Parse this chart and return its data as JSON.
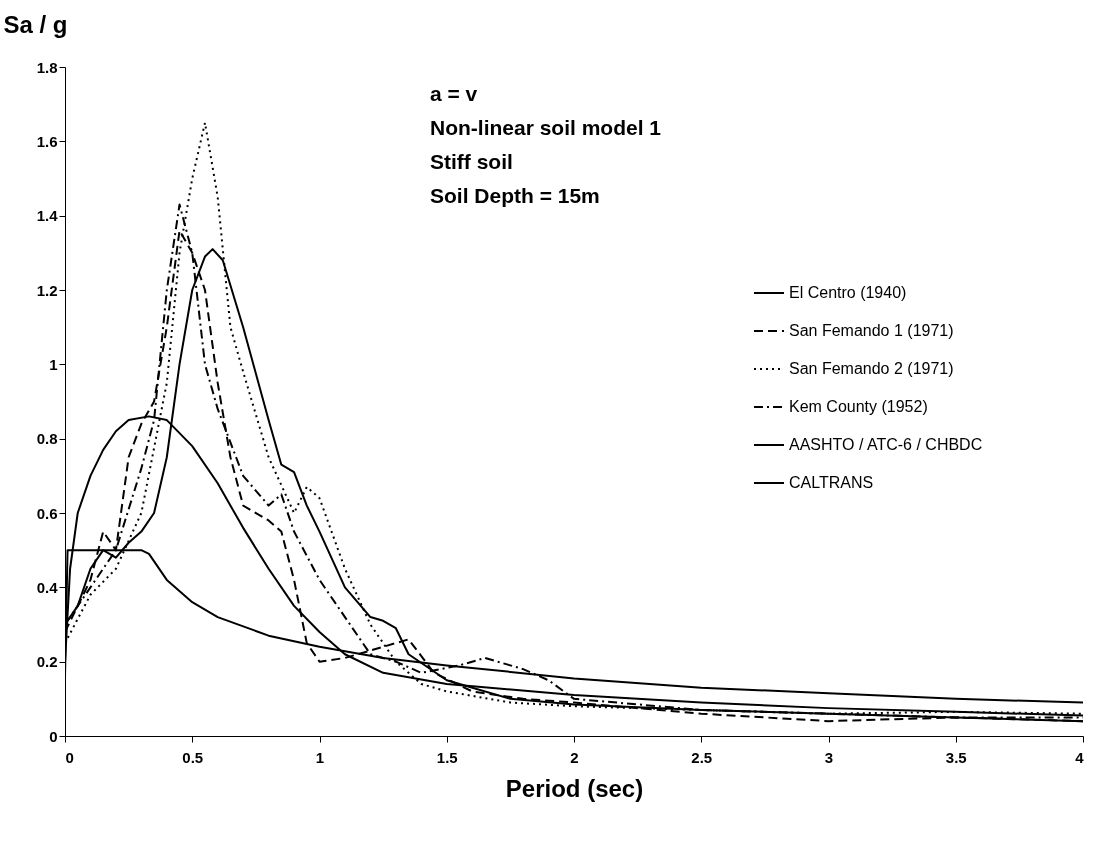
{
  "chart_data": {
    "type": "line",
    "xlabel": "Period (sec)",
    "ylabel": "Sa / g",
    "annotations": [
      "a = v",
      "Non-linear soil model 1",
      "Stiff soil",
      "Soil Depth = 15m"
    ],
    "xlim": [
      0,
      4
    ],
    "xticks": [
      0,
      0.5,
      1,
      1.5,
      2,
      2.5,
      3,
      3.5,
      4
    ],
    "ylim": [
      0,
      1.8
    ],
    "yticks": [
      0,
      0.2,
      0.4,
      0.6,
      0.8,
      1,
      1.2,
      1.4,
      1.6,
      1.8
    ],
    "grid": false,
    "legend": "right",
    "marker": "none",
    "series": [
      {
        "name": "El Centro (1940)",
        "color": "#000000",
        "line_style": "solid",
        "x": [
          0,
          0.05,
          0.1,
          0.15,
          0.2,
          0.25,
          0.3,
          0.35,
          0.4,
          0.45,
          0.5,
          0.55,
          0.58,
          0.62,
          0.7,
          0.8,
          0.85,
          0.9,
          0.95,
          1.0,
          1.1,
          1.2,
          1.25,
          1.3,
          1.35,
          1.5,
          1.75,
          2,
          2.5,
          3,
          3.5,
          4
        ],
        "values": [
          0.3,
          0.35,
          0.45,
          0.5,
          0.48,
          0.52,
          0.55,
          0.6,
          0.75,
          1.0,
          1.2,
          1.29,
          1.31,
          1.28,
          1.1,
          0.85,
          0.73,
          0.71,
          0.62,
          0.55,
          0.4,
          0.32,
          0.31,
          0.29,
          0.22,
          0.15,
          0.1,
          0.085,
          0.07,
          0.06,
          0.05,
          0.04
        ]
      },
      {
        "name": "San Femando 1 (1971)",
        "color": "#000000",
        "line_style": "dashed",
        "x": [
          0,
          0.05,
          0.1,
          0.15,
          0.2,
          0.25,
          0.3,
          0.35,
          0.4,
          0.45,
          0.5,
          0.55,
          0.6,
          0.65,
          0.7,
          0.8,
          0.85,
          0.9,
          0.95,
          1.0,
          1.1,
          1.2,
          1.35,
          1.45,
          1.6,
          1.8,
          2,
          2.5,
          3,
          3.5,
          4
        ],
        "values": [
          0.28,
          0.35,
          0.42,
          0.55,
          0.5,
          0.75,
          0.84,
          0.9,
          1.1,
          1.36,
          1.3,
          1.2,
          0.95,
          0.75,
          0.62,
          0.58,
          0.55,
          0.42,
          0.25,
          0.2,
          0.21,
          0.23,
          0.26,
          0.17,
          0.12,
          0.1,
          0.09,
          0.06,
          0.04,
          0.05,
          0.04
        ]
      },
      {
        "name": "San Femando 2 (1971)",
        "color": "#000000",
        "line_style": "dotted",
        "x": [
          0,
          0.1,
          0.2,
          0.3,
          0.4,
          0.45,
          0.5,
          0.55,
          0.6,
          0.65,
          0.7,
          0.8,
          0.9,
          0.95,
          1.0,
          1.1,
          1.2,
          1.3,
          1.4,
          1.5,
          1.75,
          2,
          2.5,
          3,
          3.5,
          4
        ],
        "values": [
          0.25,
          0.38,
          0.45,
          0.6,
          0.95,
          1.3,
          1.5,
          1.65,
          1.45,
          1.1,
          0.98,
          0.75,
          0.6,
          0.67,
          0.64,
          0.45,
          0.3,
          0.2,
          0.14,
          0.12,
          0.09,
          0.08,
          0.07,
          0.06,
          0.065,
          0.06
        ]
      },
      {
        "name": "Kem County (1952)",
        "color": "#000000",
        "line_style": "dashdot",
        "x": [
          0,
          0.1,
          0.2,
          0.3,
          0.35,
          0.4,
          0.45,
          0.5,
          0.55,
          0.6,
          0.7,
          0.8,
          0.85,
          0.9,
          1.0,
          1.1,
          1.2,
          1.3,
          1.4,
          1.55,
          1.65,
          1.8,
          1.9,
          2,
          2.5,
          3,
          3.5,
          4
        ],
        "values": [
          0.3,
          0.4,
          0.5,
          0.72,
          0.85,
          1.2,
          1.43,
          1.3,
          1.0,
          0.88,
          0.7,
          0.62,
          0.65,
          0.55,
          0.42,
          0.32,
          0.22,
          0.2,
          0.17,
          0.19,
          0.21,
          0.18,
          0.15,
          0.1,
          0.07,
          0.06,
          0.05,
          0.05
        ]
      },
      {
        "name": "AASHTO / ATC-6 / CHBDC",
        "color": "#000000",
        "line_style": "solid",
        "x": [
          0,
          0.02,
          0.05,
          0.1,
          0.15,
          0.2,
          0.25,
          0.33,
          0.4,
          0.5,
          0.6,
          0.7,
          0.8,
          0.9,
          1.0,
          1.1,
          1.25,
          1.5,
          2,
          2.5,
          3,
          3.5,
          4
        ],
        "values": [
          0.2,
          0.45,
          0.6,
          0.7,
          0.77,
          0.82,
          0.85,
          0.86,
          0.85,
          0.78,
          0.68,
          0.56,
          0.45,
          0.35,
          0.28,
          0.22,
          0.17,
          0.14,
          0.11,
          0.09,
          0.075,
          0.065,
          0.055
        ]
      },
      {
        "name": "CALTRANS",
        "color": "#000000",
        "line_style": "solid",
        "x": [
          0,
          0.01,
          0.3,
          0.33,
          0.4,
          0.5,
          0.6,
          0.8,
          1.0,
          1.25,
          1.5,
          2,
          2.5,
          3,
          3.5,
          4
        ],
        "values": [
          0.16,
          0.5,
          0.5,
          0.49,
          0.42,
          0.36,
          0.32,
          0.27,
          0.24,
          0.21,
          0.19,
          0.155,
          0.13,
          0.115,
          0.1,
          0.09
        ]
      }
    ]
  }
}
